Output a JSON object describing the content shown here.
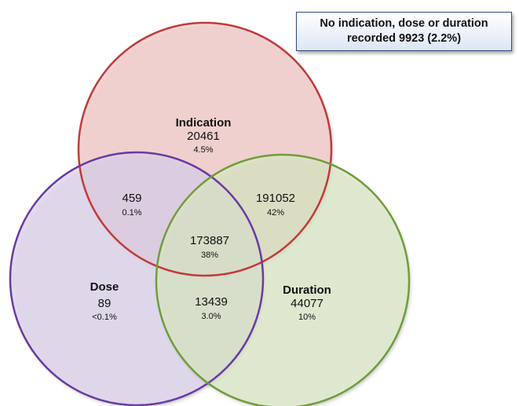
{
  "note": {
    "line1": "No indication, dose or duration",
    "line2": "recorded 9923 (2.2%)"
  },
  "sets": {
    "indication": {
      "name": "Indication",
      "count": "20461",
      "pct": "4.5%",
      "fill": "#f4c9c6",
      "stroke": "#c23a3a"
    },
    "dose": {
      "name": "Dose",
      "count": "89",
      "pct": "<0.1%",
      "fill": "#ddd3ec",
      "stroke": "#6a3aa4"
    },
    "duration": {
      "name": "Duration",
      "count": "44077",
      "pct": "10%",
      "fill": "#dde9c8",
      "stroke": "#6f9d3a"
    }
  },
  "overlaps": {
    "indication_dose": {
      "count": "459",
      "pct": "0.1%"
    },
    "indication_duration": {
      "count": "191052",
      "pct": "42%"
    },
    "all_three": {
      "count": "173887",
      "pct": "38%"
    },
    "dose_duration": {
      "count": "13439",
      "pct": "3.0%"
    }
  }
}
